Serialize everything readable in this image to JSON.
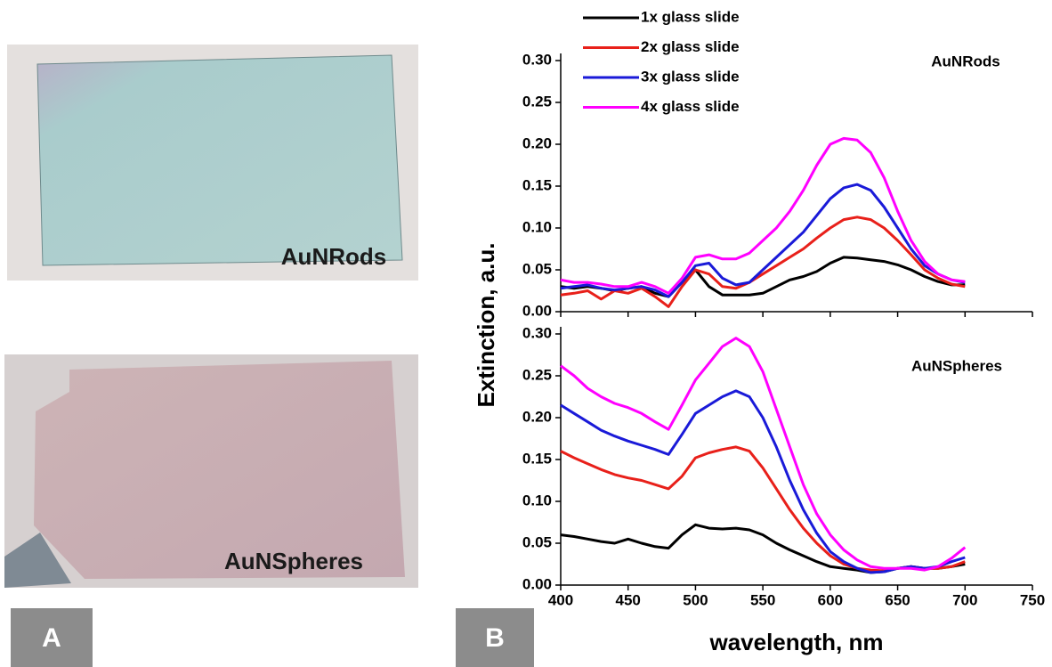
{
  "photos": [
    {
      "label": "AuNRods"
    },
    {
      "label": "AuNSpheres"
    }
  ],
  "panels": [
    "A",
    "B"
  ],
  "chart_data": [
    {
      "type": "line",
      "annotation": "AuNRods",
      "y_label": "Extinction, a.u.",
      "legend": "upper left",
      "x": [
        400,
        410,
        420,
        430,
        440,
        450,
        460,
        470,
        480,
        490,
        500,
        510,
        520,
        530,
        540,
        550,
        560,
        570,
        580,
        590,
        600,
        610,
        620,
        630,
        640,
        650,
        660,
        670,
        680,
        690,
        700
      ],
      "xlim": [
        400,
        750
      ],
      "ylim": [
        0,
        0.3
      ],
      "yticks": [
        {
          "value": 0,
          "label": "0.00"
        },
        0.05,
        {
          "value": 0.1,
          "label": "0.10"
        },
        0.15,
        {
          "value": 0.2,
          "label": "0.20"
        },
        0.25,
        {
          "value": 0.3,
          "label": "0.30"
        }
      ],
      "series": [
        {
          "name": "1x glass slide",
          "color": "#000000",
          "values": [
            0.03,
            0.028,
            0.03,
            0.028,
            0.025,
            0.028,
            0.03,
            0.022,
            0.018,
            0.035,
            0.05,
            0.03,
            0.02,
            0.02,
            0.02,
            0.022,
            0.03,
            0.038,
            0.042,
            0.048,
            0.058,
            0.065,
            0.064,
            0.062,
            0.06,
            0.056,
            0.05,
            0.042,
            0.036,
            0.032,
            0.032
          ]
        },
        {
          "name": "2x glass slide",
          "color": "#e8201a",
          "values": [
            0.02,
            0.022,
            0.025,
            0.015,
            0.025,
            0.022,
            0.028,
            0.018,
            0.006,
            0.03,
            0.05,
            0.045,
            0.03,
            0.028,
            0.035,
            0.045,
            0.055,
            0.065,
            0.075,
            0.088,
            0.1,
            0.11,
            0.113,
            0.11,
            0.1,
            0.085,
            0.068,
            0.05,
            0.04,
            0.033,
            0.03
          ]
        },
        {
          "name": "3x glass slide",
          "color": "#1a1ad8",
          "values": [
            0.028,
            0.03,
            0.032,
            0.028,
            0.026,
            0.028,
            0.03,
            0.026,
            0.018,
            0.035,
            0.055,
            0.058,
            0.04,
            0.032,
            0.035,
            0.05,
            0.065,
            0.08,
            0.095,
            0.115,
            0.135,
            0.148,
            0.152,
            0.145,
            0.125,
            0.1,
            0.075,
            0.055,
            0.045,
            0.038,
            0.035
          ]
        },
        {
          "name": "4x glass slide",
          "color": "#ff00ff",
          "values": [
            0.038,
            0.035,
            0.035,
            0.033,
            0.03,
            0.03,
            0.035,
            0.03,
            0.022,
            0.04,
            0.065,
            0.068,
            0.063,
            0.063,
            0.07,
            0.085,
            0.1,
            0.12,
            0.145,
            0.175,
            0.2,
            0.207,
            0.205,
            0.19,
            0.16,
            0.12,
            0.085,
            0.06,
            0.045,
            0.038,
            0.036
          ]
        }
      ]
    },
    {
      "type": "line",
      "annotation": "AuNSpheres",
      "x_label": "wavelength, nm",
      "x": [
        400,
        410,
        420,
        430,
        440,
        450,
        460,
        470,
        480,
        490,
        500,
        510,
        520,
        530,
        540,
        550,
        560,
        570,
        580,
        590,
        600,
        610,
        620,
        630,
        640,
        650,
        660,
        670,
        680,
        690,
        700
      ],
      "xlim": [
        400,
        750
      ],
      "ylim": [
        0,
        0.3
      ],
      "xticks": [
        400,
        450,
        500,
        550,
        600,
        650,
        700,
        750
      ],
      "yticks": [
        {
          "value": 0,
          "label": "0.00"
        },
        0.05,
        {
          "value": 0.1,
          "label": "0.10"
        },
        0.15,
        {
          "value": 0.2,
          "label": "0.20"
        },
        0.25,
        {
          "value": 0.3,
          "label": "0.30"
        }
      ],
      "series": [
        {
          "color": "#000000",
          "values": [
            0.06,
            0.058,
            0.055,
            0.052,
            0.05,
            0.055,
            0.05,
            0.046,
            0.044,
            0.06,
            0.072,
            0.068,
            0.067,
            0.068,
            0.066,
            0.06,
            0.05,
            0.042,
            0.035,
            0.028,
            0.022,
            0.02,
            0.018,
            0.015,
            0.016,
            0.02,
            0.022,
            0.02,
            0.02,
            0.022,
            0.025
          ]
        },
        {
          "color": "#e8201a",
          "values": [
            0.16,
            0.152,
            0.145,
            0.138,
            0.132,
            0.128,
            0.125,
            0.12,
            0.115,
            0.13,
            0.152,
            0.158,
            0.162,
            0.165,
            0.16,
            0.14,
            0.115,
            0.09,
            0.068,
            0.05,
            0.035,
            0.025,
            0.02,
            0.018,
            0.017,
            0.02,
            0.022,
            0.02,
            0.02,
            0.022,
            0.028
          ]
        },
        {
          "color": "#1a1ad8",
          "values": [
            0.215,
            0.205,
            0.195,
            0.185,
            0.178,
            0.172,
            0.167,
            0.162,
            0.156,
            0.18,
            0.205,
            0.215,
            0.225,
            0.232,
            0.225,
            0.2,
            0.165,
            0.125,
            0.09,
            0.062,
            0.04,
            0.028,
            0.02,
            0.015,
            0.016,
            0.02,
            0.022,
            0.02,
            0.022,
            0.028,
            0.033
          ]
        },
        {
          "color": "#ff00ff",
          "values": [
            0.262,
            0.25,
            0.235,
            0.225,
            0.217,
            0.212,
            0.205,
            0.195,
            0.186,
            0.215,
            0.245,
            0.265,
            0.285,
            0.295,
            0.285,
            0.255,
            0.21,
            0.165,
            0.12,
            0.085,
            0.06,
            0.042,
            0.03,
            0.022,
            0.02,
            0.02,
            0.02,
            0.018,
            0.022,
            0.032,
            0.045
          ]
        }
      ]
    }
  ]
}
